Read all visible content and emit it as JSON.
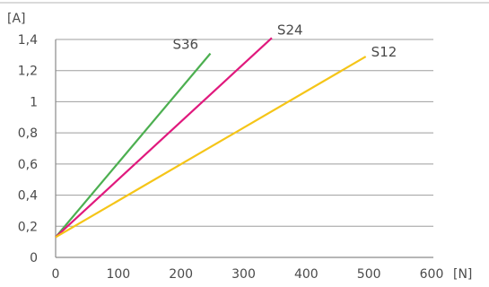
{
  "chart_data": {
    "type": "line",
    "title": "",
    "xlabel": "[N]",
    "ylabel": "[A]",
    "xlim": [
      0,
      600
    ],
    "ylim": [
      0,
      1.4
    ],
    "x_ticks": [
      0,
      100,
      200,
      300,
      400,
      500,
      600
    ],
    "x_tick_labels": [
      "0",
      "100",
      "200",
      "300",
      "400",
      "500",
      "600"
    ],
    "y_ticks": [
      0,
      0.2,
      0.4,
      0.6,
      0.8,
      1.0,
      1.2,
      1.4
    ],
    "y_tick_labels": [
      "0",
      "0,2",
      "0,4",
      "0,6",
      "0,8",
      "1",
      "1,2",
      "1,4"
    ],
    "grid": "horizontal",
    "legend": "none",
    "series": [
      {
        "name": "S36",
        "color": "#4caf50",
        "x": [
          0,
          247
        ],
        "y": [
          0.13,
          1.31
        ]
      },
      {
        "name": "S24",
        "color": "#e0197d",
        "x": [
          0,
          345
        ],
        "y": [
          0.13,
          1.41
        ]
      },
      {
        "name": "S12",
        "color": "#f5c518",
        "x": [
          0,
          495
        ],
        "y": [
          0.13,
          1.29
        ]
      }
    ]
  }
}
